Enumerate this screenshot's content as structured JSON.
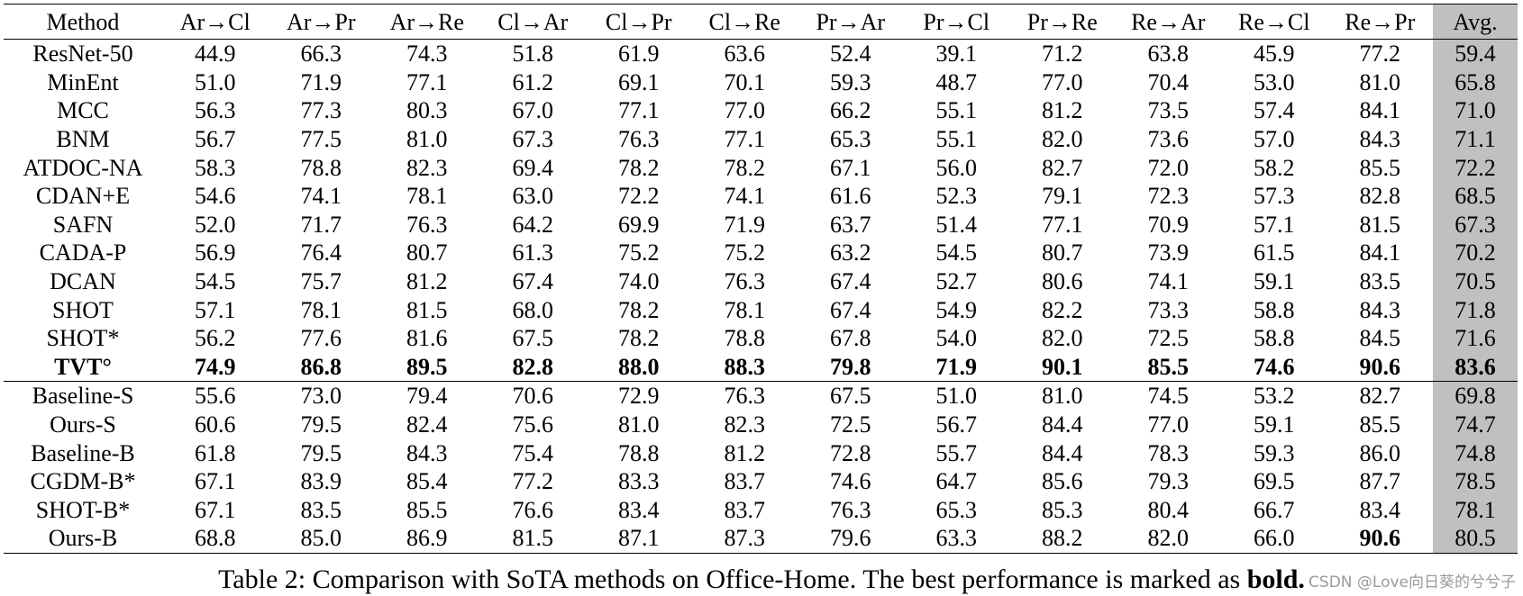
{
  "table": {
    "header": [
      "Method",
      "Ar→Cl",
      "Ar→Pr",
      "Ar→Re",
      "Cl→Ar",
      "Cl→Pr",
      "Cl→Re",
      "Pr→Ar",
      "Pr→Cl",
      "Pr→Re",
      "Re→Ar",
      "Re→Cl",
      "Re→Pr",
      "Avg."
    ],
    "rows": [
      [
        "ResNet-50",
        "44.9",
        "66.3",
        "74.3",
        "51.8",
        "61.9",
        "63.6",
        "52.4",
        "39.1",
        "71.2",
        "63.8",
        "45.9",
        "77.2",
        "59.4"
      ],
      [
        "MinEnt",
        "51.0",
        "71.9",
        "77.1",
        "61.2",
        "69.1",
        "70.1",
        "59.3",
        "48.7",
        "77.0",
        "70.4",
        "53.0",
        "81.0",
        "65.8"
      ],
      [
        "MCC",
        "56.3",
        "77.3",
        "80.3",
        "67.0",
        "77.1",
        "77.0",
        "66.2",
        "55.1",
        "81.2",
        "73.5",
        "57.4",
        "84.1",
        "71.0"
      ],
      [
        "BNM",
        "56.7",
        "77.5",
        "81.0",
        "67.3",
        "76.3",
        "77.1",
        "65.3",
        "55.1",
        "82.0",
        "73.6",
        "57.0",
        "84.3",
        "71.1"
      ],
      [
        "ATDOC-NA",
        "58.3",
        "78.8",
        "82.3",
        "69.4",
        "78.2",
        "78.2",
        "67.1",
        "56.0",
        "82.7",
        "72.0",
        "58.2",
        "85.5",
        "72.2"
      ],
      [
        "CDAN+E",
        "54.6",
        "74.1",
        "78.1",
        "63.0",
        "72.2",
        "74.1",
        "61.6",
        "52.3",
        "79.1",
        "72.3",
        "57.3",
        "82.8",
        "68.5"
      ],
      [
        "SAFN",
        "52.0",
        "71.7",
        "76.3",
        "64.2",
        "69.9",
        "71.9",
        "63.7",
        "51.4",
        "77.1",
        "70.9",
        "57.1",
        "81.5",
        "67.3"
      ],
      [
        "CADA-P",
        "56.9",
        "76.4",
        "80.7",
        "61.3",
        "75.2",
        "75.2",
        "63.2",
        "54.5",
        "80.7",
        "73.9",
        "61.5",
        "84.1",
        "70.2"
      ],
      [
        "DCAN",
        "54.5",
        "75.7",
        "81.2",
        "67.4",
        "74.0",
        "76.3",
        "67.4",
        "52.7",
        "80.6",
        "74.1",
        "59.1",
        "83.5",
        "70.5"
      ],
      [
        "SHOT",
        "57.1",
        "78.1",
        "81.5",
        "68.0",
        "78.2",
        "78.1",
        "67.4",
        "54.9",
        "82.2",
        "73.3",
        "58.8",
        "84.3",
        "71.8"
      ],
      [
        "SHOT*",
        "56.2",
        "77.6",
        "81.6",
        "67.5",
        "78.2",
        "78.8",
        "67.8",
        "54.0",
        "82.0",
        "72.5",
        "58.8",
        "84.5",
        "71.6"
      ],
      [
        "TVT°",
        "74.9",
        "86.8",
        "89.5",
        "82.8",
        "88.0",
        "88.3",
        "79.8",
        "71.9",
        "90.1",
        "85.5",
        "74.6",
        "90.6",
        "83.6"
      ],
      [
        "Baseline-S",
        "55.6",
        "73.0",
        "79.4",
        "70.6",
        "72.9",
        "76.3",
        "67.5",
        "51.0",
        "81.0",
        "74.5",
        "53.2",
        "82.7",
        "69.8"
      ],
      [
        "Ours-S",
        "60.6",
        "79.5",
        "82.4",
        "75.6",
        "81.0",
        "82.3",
        "72.5",
        "56.7",
        "84.4",
        "77.0",
        "59.1",
        "85.5",
        "74.7"
      ],
      [
        "Baseline-B",
        "61.8",
        "79.5",
        "84.3",
        "75.4",
        "78.8",
        "81.2",
        "72.8",
        "55.7",
        "84.4",
        "78.3",
        "59.3",
        "86.0",
        "74.8"
      ],
      [
        "CGDM-B*",
        "67.1",
        "83.9",
        "85.4",
        "77.2",
        "83.3",
        "83.7",
        "74.6",
        "64.7",
        "85.6",
        "79.3",
        "69.5",
        "87.7",
        "78.5"
      ],
      [
        "SHOT-B*",
        "67.1",
        "83.5",
        "85.5",
        "76.6",
        "83.4",
        "83.7",
        "76.3",
        "65.3",
        "85.3",
        "80.4",
        "66.7",
        "83.4",
        "78.1"
      ],
      [
        "Ours-B",
        "68.8",
        "85.0",
        "86.9",
        "81.5",
        "87.1",
        "87.3",
        "79.6",
        "63.3",
        "88.2",
        "82.0",
        "66.0",
        "90.6",
        "80.5"
      ]
    ]
  },
  "caption": {
    "text": "Table 2: Comparison with SoTA methods on Office-Home. The best performance is marked as ",
    "emphasis": "bold."
  },
  "watermark": "CSDN @Love向日葵的兮兮子"
}
